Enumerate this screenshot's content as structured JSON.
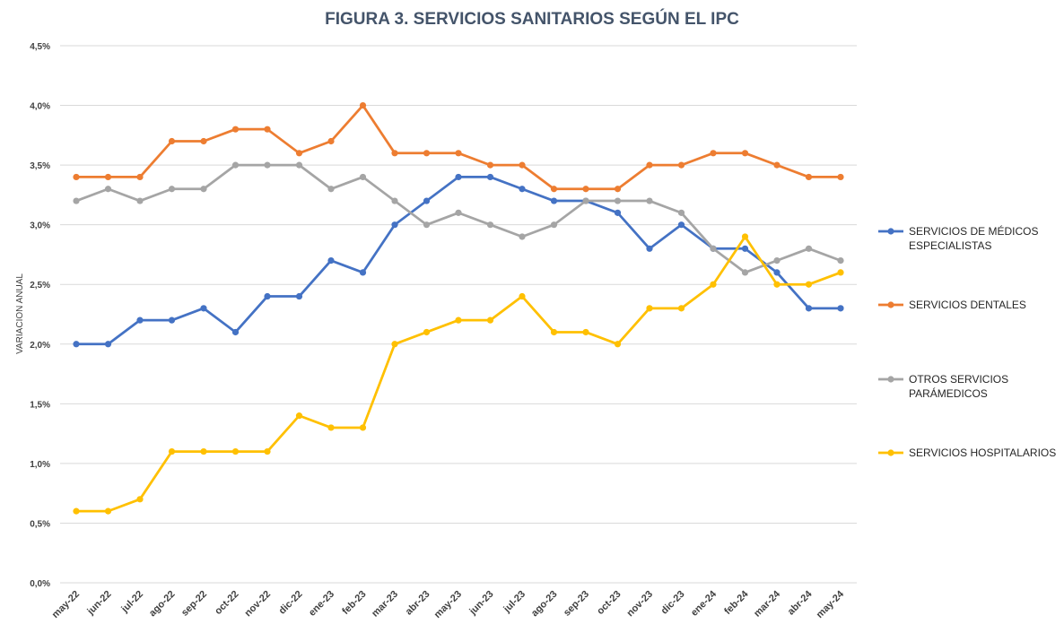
{
  "chart_data": {
    "type": "line",
    "title": "FIGURA 3. SERVICIOS SANITARIOS SEGÚN EL IPC",
    "xlabel": "",
    "ylabel": "VARIACION ANUAL",
    "ylim": [
      0,
      4.5
    ],
    "yticks": [
      "0,0%",
      "0,5%",
      "1,0%",
      "1,5%",
      "2,0%",
      "2,5%",
      "3,0%",
      "3,5%",
      "4,0%",
      "4,5%"
    ],
    "grid": true,
    "legend_position": "right",
    "categories": [
      "may-22",
      "jun-22",
      "jul-22",
      "ago-22",
      "sep-22",
      "oct-22",
      "nov-22",
      "dic-22",
      "ene-23",
      "feb-23",
      "mar-23",
      "abr-23",
      "may-23",
      "jun-23",
      "jul-23",
      "ago-23",
      "sep-23",
      "oct-23",
      "nov-23",
      "dic-23",
      "ene-24",
      "feb-24",
      "mar-24",
      "abr-24",
      "may-24"
    ],
    "series": [
      {
        "name": "SERVICIOS DE MÉDICOS ESPECIALISTAS",
        "legend_lines": [
          "SERVICIOS DE MÉDICOS",
          "ESPECIALISTAS"
        ],
        "color": "#4472c4",
        "values": [
          2.0,
          2.0,
          2.2,
          2.2,
          2.3,
          2.1,
          2.4,
          2.4,
          2.7,
          2.6,
          3.0,
          3.2,
          3.4,
          3.4,
          3.3,
          3.2,
          3.2,
          3.1,
          2.8,
          3.0,
          2.8,
          2.8,
          2.6,
          2.3,
          2.3
        ]
      },
      {
        "name": "SERVICIOS DENTALES",
        "legend_lines": [
          "SERVICIOS DENTALES"
        ],
        "color": "#ed7d31",
        "values": [
          3.4,
          3.4,
          3.4,
          3.7,
          3.7,
          3.8,
          3.8,
          3.6,
          3.7,
          4.0,
          3.6,
          3.6,
          3.6,
          3.5,
          3.5,
          3.3,
          3.3,
          3.3,
          3.5,
          3.5,
          3.6,
          3.6,
          3.5,
          3.4,
          3.4
        ]
      },
      {
        "name": "OTROS SERVICIOS PARÁMEDICOS",
        "legend_lines": [
          "OTROS SERVICIOS",
          "PARÁMEDICOS"
        ],
        "color": "#a5a5a5",
        "values": [
          3.2,
          3.3,
          3.2,
          3.3,
          3.3,
          3.5,
          3.5,
          3.5,
          3.3,
          3.4,
          3.2,
          3.0,
          3.1,
          3.0,
          2.9,
          3.0,
          3.2,
          3.2,
          3.2,
          3.1,
          2.8,
          2.6,
          2.7,
          2.8,
          2.7
        ]
      },
      {
        "name": "SERVICIOS HOSPITALARIOS",
        "legend_lines": [
          "SERVICIOS HOSPITALARIOS"
        ],
        "color": "#ffc000",
        "values": [
          0.6,
          0.6,
          0.7,
          1.1,
          1.1,
          1.1,
          1.1,
          1.4,
          1.3,
          1.3,
          2.0,
          2.1,
          2.2,
          2.2,
          2.4,
          2.1,
          2.1,
          2.0,
          2.3,
          2.3,
          2.5,
          2.9,
          2.5,
          2.5,
          2.6
        ]
      }
    ]
  }
}
